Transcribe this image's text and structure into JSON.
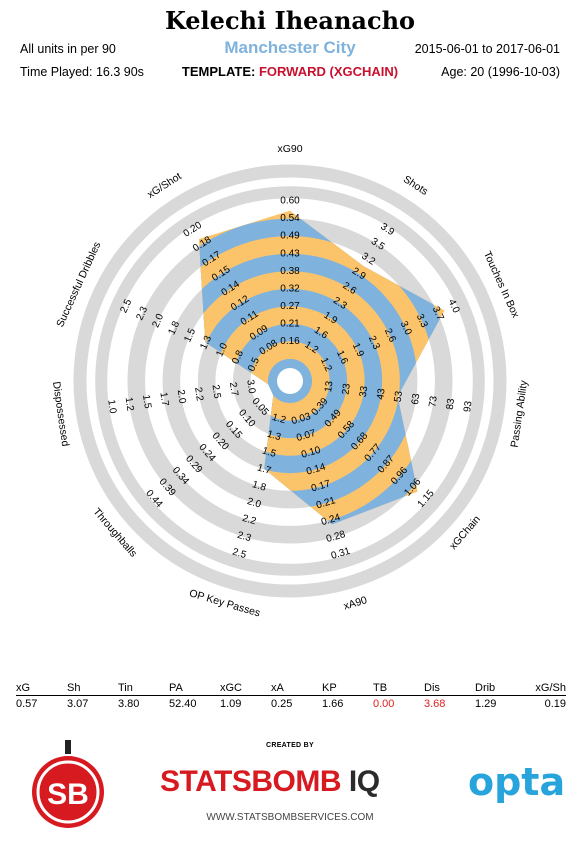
{
  "header": {
    "player_name": "Kelechi Iheanacho",
    "team": "Manchester City",
    "units_note": "All units in per 90",
    "time_played": "Time Played: 16.3 90s",
    "template_label": "TEMPLATE:",
    "template_value": "FORWARD (XGCHAIN)",
    "date_range": "2015-06-01 to 2017-06-01",
    "age": "Age: 20 (1996-10-03)"
  },
  "colors": {
    "band_blue": "#7fb2dc",
    "band_orange": "#fcc46a",
    "ring_gray": "#d9d9d9",
    "brand_red": "#d71920",
    "opta_blue": "#27a4dc",
    "negative_red": "#e02020"
  },
  "chart_data": {
    "type": "radar",
    "title": "Kelechi Iheanacho",
    "axes": [
      {
        "label": "xG90",
        "ticks": [
          "0.16",
          "0.21",
          "0.27",
          "0.32",
          "0.38",
          "0.43",
          "0.49",
          "0.54",
          "0.60"
        ],
        "value": 0.57,
        "range": [
          0.11,
          0.6
        ]
      },
      {
        "label": "Shots",
        "ticks": [
          "1.2",
          "1.6",
          "1.9",
          "2.3",
          "2.6",
          "2.9",
          "3.2",
          "3.5",
          "3.9"
        ],
        "value": 3.07,
        "range": [
          0.9,
          3.9
        ]
      },
      {
        "label": "Touches In Box",
        "ticks": [
          "1.2",
          "1.6",
          "1.9",
          "2.3",
          "2.6",
          "3.0",
          "3.3",
          "3.7",
          "4.0"
        ],
        "value": 3.8,
        "range": [
          0.9,
          4.0
        ]
      },
      {
        "label": "Passing Ability",
        "ticks": [
          "13",
          "23",
          "33",
          "43",
          "53",
          "63",
          "73",
          "83",
          "93"
        ],
        "value": 52.4,
        "range": [
          3,
          93
        ]
      },
      {
        "label": "xGChain",
        "ticks": [
          "0.39",
          "0.49",
          "0.58",
          "0.68",
          "0.77",
          "0.87",
          "0.96",
          "1.06",
          "1.15"
        ],
        "value": 1.09,
        "range": [
          0.3,
          1.15
        ]
      },
      {
        "label": "xA90",
        "ticks": [
          "0.03",
          "0.07",
          "0.10",
          "0.14",
          "0.17",
          "0.21",
          "0.24",
          "0.28",
          "0.31"
        ],
        "value": 0.25,
        "range": [
          0.0,
          0.31
        ]
      },
      {
        "label": "OP Key Passes",
        "ticks": [
          "1.2",
          "1.3",
          "1.5",
          "1.7",
          "1.8",
          "2.0",
          "2.2",
          "2.3",
          "2.5"
        ],
        "value": 1.66,
        "range": [
          1.0,
          2.5
        ]
      },
      {
        "label": "Throughballs",
        "ticks": [
          "0.05",
          "0.10",
          "0.15",
          "0.20",
          "0.24",
          "0.29",
          "0.34",
          "0.39",
          "0.44"
        ],
        "value": 0.0,
        "range": [
          0.0,
          0.44
        ]
      },
      {
        "label": "Dispossessed",
        "ticks": [
          "3.0",
          "2.7",
          "2.5",
          "2.2",
          "2.0",
          "1.7",
          "1.5",
          "1.2",
          "1.0"
        ],
        "value": 3.68,
        "range": [
          3.2,
          1.0
        ]
      },
      {
        "label": "Successful Dribbles",
        "ticks": [
          "0.5",
          "0.8",
          "1.0",
          "1.3",
          "1.5",
          "1.8",
          "2.0",
          "2.3",
          "2.5"
        ],
        "value": 1.29,
        "range": [
          0.3,
          2.5
        ]
      },
      {
        "label": "xG/Shot",
        "ticks": [
          "0.08",
          "0.09",
          "0.11",
          "0.12",
          "0.14",
          "0.15",
          "0.17",
          "0.18",
          "0.20"
        ],
        "value": 0.19,
        "range": [
          0.06,
          0.2
        ]
      }
    ]
  },
  "stats_table": {
    "headers": [
      "xG",
      "Sh",
      "Tin",
      "PA",
      "xGC",
      "xA",
      "KP",
      "TB",
      "Dis",
      "Drib",
      "xG/Sh"
    ],
    "values": [
      "0.57",
      "3.07",
      "3.80",
      "52.40",
      "1.09",
      "0.25",
      "1.66",
      "0.00",
      "3.68",
      "1.29",
      "0.19"
    ],
    "highlight_red": [
      7,
      8
    ]
  },
  "footer": {
    "created_by": "CREATED BY",
    "brand_main": "STATSBOMB",
    "brand_iq": " IQ",
    "website": "WWW.STATSBOMBSERVICES.COM",
    "sb_logo": "SB",
    "opta_logo": "opta"
  }
}
